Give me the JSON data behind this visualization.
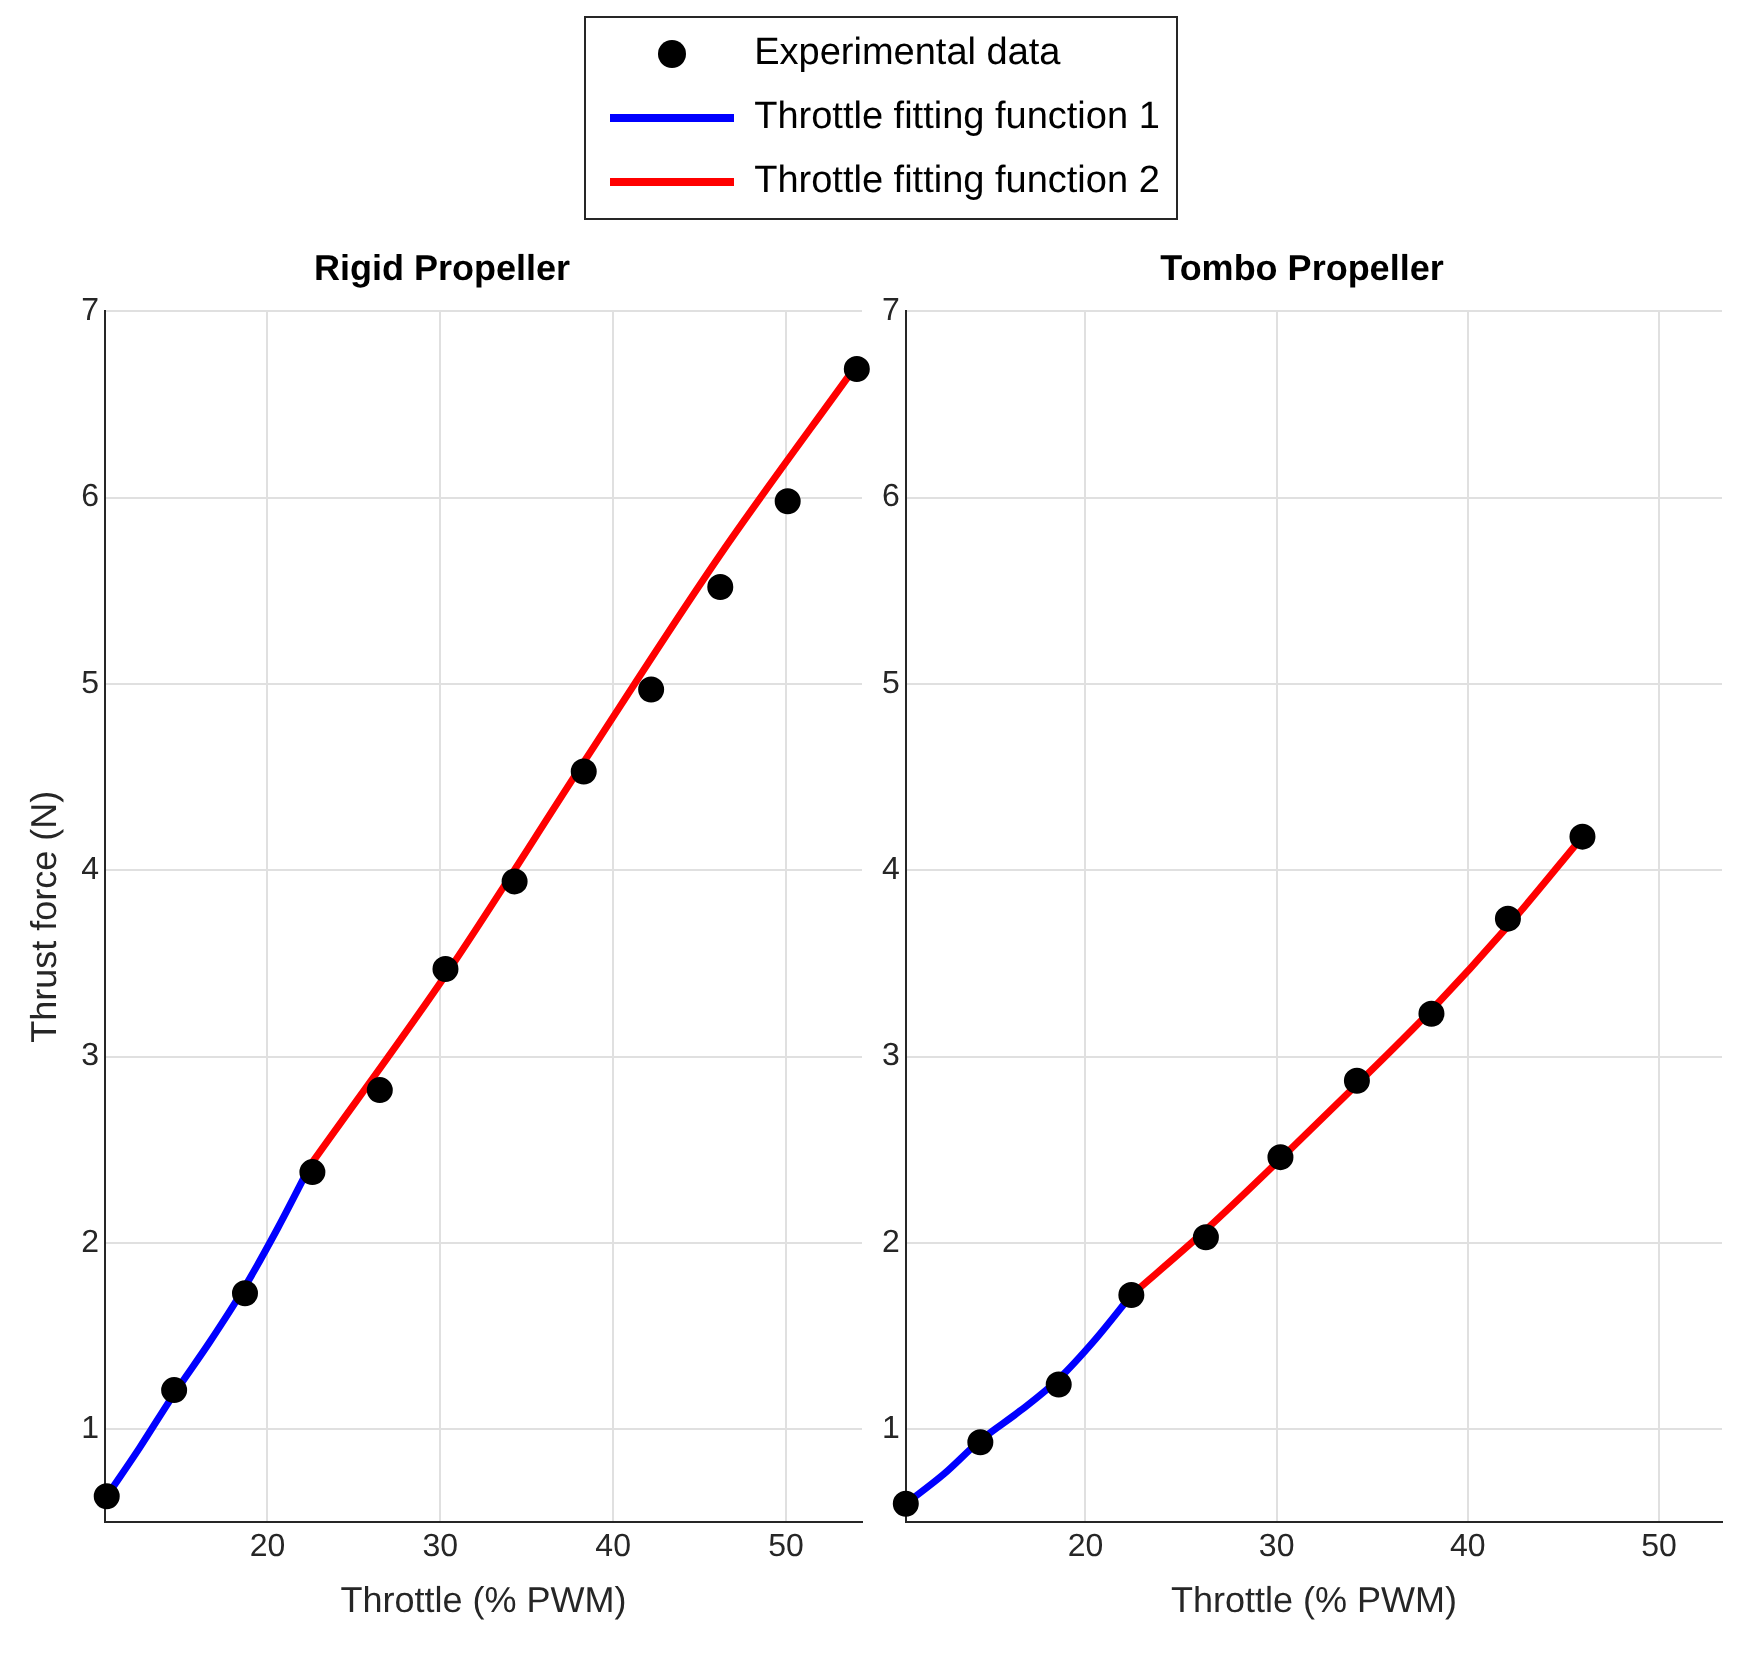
{
  "chart_data": [
    {
      "type": "scatter",
      "title": "Rigid Propeller",
      "xlabel": "Throttle (% PWM)",
      "ylabel": "Thrust force (N)",
      "xlim": [
        10.6,
        54.4
      ],
      "ylim": [
        0.5,
        7
      ],
      "xticks": [
        20,
        30,
        40,
        50
      ],
      "yticks": [
        1,
        2,
        3,
        4,
        5,
        6,
        7
      ],
      "grid": true,
      "legend": "top",
      "series": [
        {
          "name": "Experimental data",
          "type": "scatter",
          "marker": "circle",
          "color": "#000000",
          "x": [
            10.7,
            14.6,
            18.7,
            22.6,
            26.5,
            30.3,
            34.3,
            38.3,
            42.2,
            46.2,
            50.1,
            54.1
          ],
          "values": [
            0.64,
            1.21,
            1.73,
            2.38,
            2.82,
            3.47,
            3.94,
            4.53,
            4.97,
            5.52,
            5.98,
            6.69
          ]
        },
        {
          "name": "Throttle fitting function 1",
          "type": "line",
          "marker": "none",
          "color": "#0000ff",
          "x": [
            10.7,
            12.6,
            14.6,
            16.6,
            18.6,
            20.6,
            22.5
          ],
          "values": [
            0.64,
            0.9,
            1.19,
            1.46,
            1.75,
            2.08,
            2.42
          ]
        },
        {
          "name": "Throttle fitting function 2",
          "type": "line",
          "marker": "none",
          "color": "#ff0000",
          "x": [
            22.5,
            30.4,
            38.3,
            46.1,
            54.0
          ],
          "values": [
            2.42,
            3.45,
            4.58,
            5.68,
            6.7
          ]
        }
      ]
    },
    {
      "type": "scatter",
      "title": "Tombo Propeller",
      "xlabel": "Throttle (% PWM)",
      "xlim": [
        10.6,
        53.3
      ],
      "ylim": [
        0.5,
        7
      ],
      "xticks": [
        20,
        30,
        40,
        50
      ],
      "yticks": [
        1,
        2,
        3,
        4,
        5,
        6,
        7
      ],
      "grid": true,
      "series": [
        {
          "type": "scatter",
          "marker": "circle",
          "color": "#000000",
          "x": [
            10.6,
            14.5,
            18.6,
            22.4,
            26.3,
            30.2,
            34.2,
            38.1,
            42.1,
            46.0
          ],
          "values": [
            0.6,
            0.93,
            1.24,
            1.72,
            2.03,
            2.46,
            2.87,
            3.23,
            3.74,
            4.18
          ]
        },
        {
          "type": "line",
          "marker": "none",
          "color": "#0000ff",
          "x": [
            10.6,
            12.6,
            14.5,
            16.6,
            18.6,
            20.5,
            22.4
          ],
          "values": [
            0.6,
            0.76,
            0.94,
            1.1,
            1.27,
            1.48,
            1.72
          ]
        },
        {
          "type": "line",
          "marker": "none",
          "color": "#ff0000",
          "x": [
            22.4,
            26.3,
            30.2,
            34.2,
            38.1,
            42.1,
            46.0
          ],
          "values": [
            1.72,
            2.07,
            2.45,
            2.85,
            3.25,
            3.7,
            4.18
          ]
        }
      ]
    }
  ]
}
